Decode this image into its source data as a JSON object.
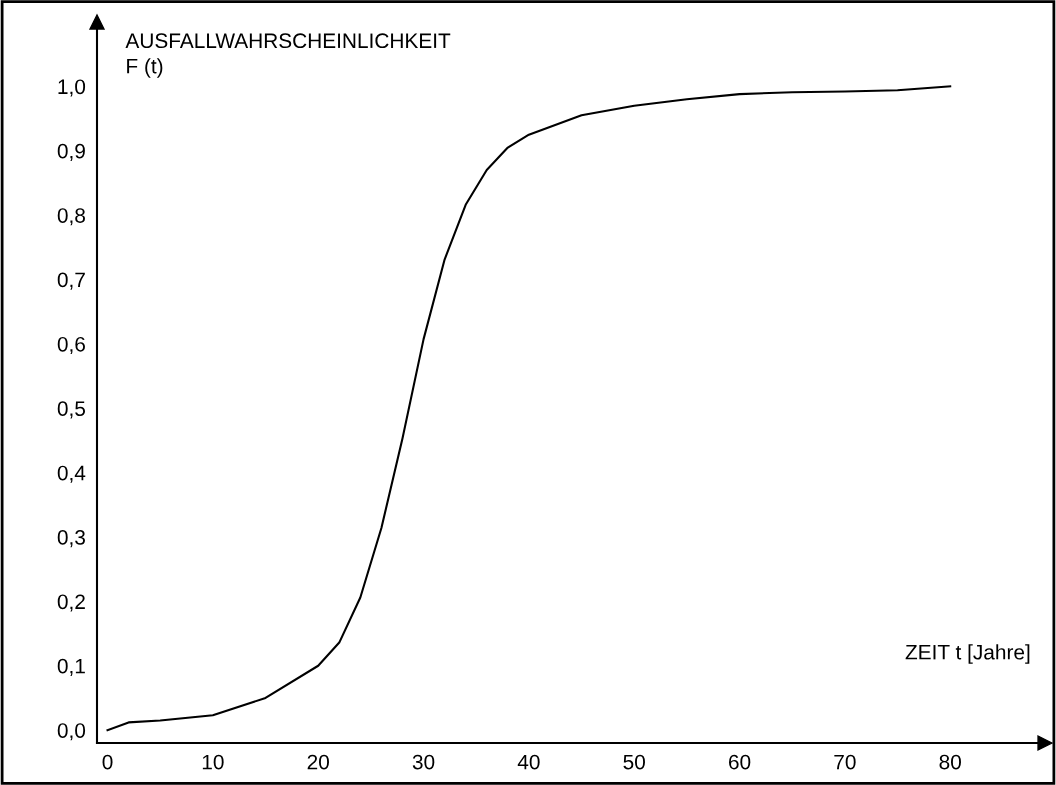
{
  "chart_data": {
    "type": "line",
    "ylabel": "AUSFALLWAHRSCHEINLICHKEIT\nF (t)",
    "xlabel": "ZEIT t [Jahre]",
    "x": [
      0,
      2,
      5,
      10,
      15,
      20,
      22,
      24,
      26,
      28,
      30,
      32,
      34,
      36,
      38,
      40,
      45,
      50,
      55,
      60,
      65,
      70,
      75,
      80
    ],
    "series": [
      {
        "color": "#000000",
        "values": [
          0.0,
          0.012,
          0.015,
          0.023,
          0.05,
          0.1,
          0.136,
          0.206,
          0.314,
          0.453,
          0.607,
          0.731,
          0.816,
          0.87,
          0.905,
          0.925,
          0.955,
          0.97,
          0.98,
          0.988,
          0.991,
          0.992,
          0.994,
          1.0
        ]
      }
    ],
    "xlim": [
      -1,
      89
    ],
    "ylim": [
      -0.02,
      1.1
    ],
    "xticks": [
      0,
      10,
      20,
      30,
      40,
      50,
      60,
      70,
      80
    ],
    "yticks": [
      {
        "value": 0,
        "label": "0,0"
      },
      {
        "value": 0.1,
        "label": "0,1"
      },
      {
        "value": 0.2,
        "label": "0,2"
      },
      {
        "value": 0.3,
        "label": "0,3"
      },
      {
        "value": 0.4,
        "label": "0,4"
      },
      {
        "value": 0.5,
        "label": "0,5"
      },
      {
        "value": 0.6,
        "label": "0,6"
      },
      {
        "value": 0.7,
        "label": "0,7"
      },
      {
        "value": 0.8,
        "label": "0,8"
      },
      {
        "value": 0.9,
        "label": "0,9"
      },
      {
        "value": 1.0,
        "label": "1,0"
      }
    ],
    "grid": false,
    "legend": false,
    "marker": "none",
    "line_style": "solid"
  }
}
